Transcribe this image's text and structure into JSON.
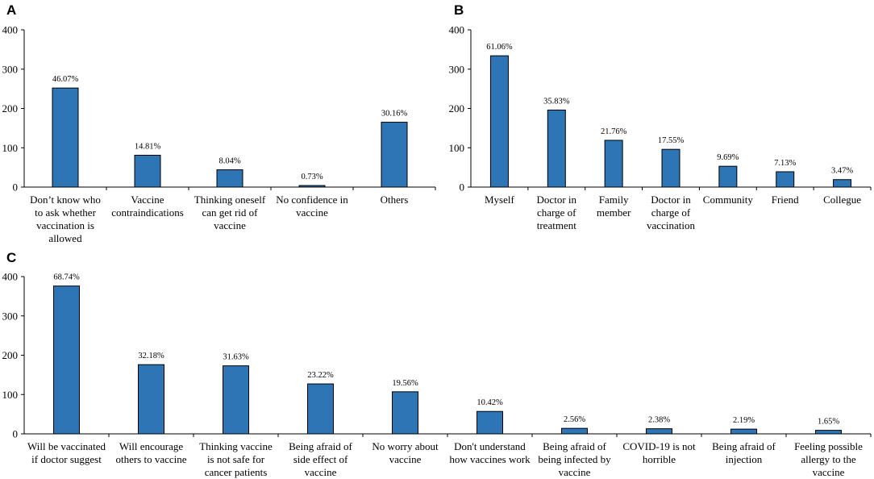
{
  "chart_data": [
    {
      "panel": "A",
      "type": "bar",
      "color": "#2E75B6",
      "ylim": [
        0,
        400
      ],
      "yticks": [
        0,
        100,
        200,
        300,
        400
      ],
      "categories": [
        [
          "Don’t know who",
          "to ask whether",
          "vaccination is",
          "allowed"
        ],
        [
          "Vaccine",
          "contraindications"
        ],
        [
          "Thinking oneself",
          "can get rid of",
          "vaccine"
        ],
        [
          "No confidence in",
          "vaccine"
        ],
        [
          "Others"
        ]
      ],
      "values": [
        252,
        81,
        44,
        4,
        165
      ],
      "labels": [
        "46.07%",
        "14.81%",
        "8.04%",
        "0.73%",
        "30.16%"
      ]
    },
    {
      "panel": "B",
      "type": "bar",
      "color": "#2E75B6",
      "ylim": [
        0,
        400
      ],
      "yticks": [
        0,
        100,
        200,
        300,
        400
      ],
      "categories": [
        [
          "Myself"
        ],
        [
          "Doctor in",
          "charge of",
          "treatment"
        ],
        [
          "Family",
          "member"
        ],
        [
          "Doctor in",
          "charge of",
          "vaccination"
        ],
        [
          "Community"
        ],
        [
          "Friend"
        ],
        [
          "Collegue"
        ]
      ],
      "values": [
        334,
        196,
        119,
        96,
        53,
        39,
        19
      ],
      "labels": [
        "61.06%",
        "35.83%",
        "21.76%",
        "17.55%",
        "9.69%",
        "7.13%",
        "3.47%"
      ]
    },
    {
      "panel": "C",
      "type": "bar",
      "color": "#2E75B6",
      "ylim": [
        0,
        400
      ],
      "yticks": [
        0,
        100,
        200,
        300,
        400
      ],
      "categories": [
        [
          "Will be vaccinated",
          "if doctor suggest"
        ],
        [
          "Will encourage",
          "others to vaccine"
        ],
        [
          "Thinking vaccine",
          "is not safe for",
          "cancer patients"
        ],
        [
          "Being afraid of",
          "side effect of",
          "vaccine"
        ],
        [
          "No worry about",
          "vaccine"
        ],
        [
          "Don't understand",
          "how vaccines work"
        ],
        [
          "Being afraid of",
          "being infected by",
          "vaccine"
        ],
        [
          "COVID-19 is not",
          "horrible"
        ],
        [
          "Being afraid of",
          "injection"
        ],
        [
          "Feeling possible",
          "allergy to the",
          "vaccine"
        ]
      ],
      "values": [
        376,
        176,
        173,
        127,
        107,
        57,
        14,
        13,
        12,
        9
      ],
      "labels": [
        "68.74%",
        "32.18%",
        "31.63%",
        "23.22%",
        "19.56%",
        "10.42%",
        "2.56%",
        "2.38%",
        "2.19%",
        "1.65%"
      ]
    }
  ]
}
